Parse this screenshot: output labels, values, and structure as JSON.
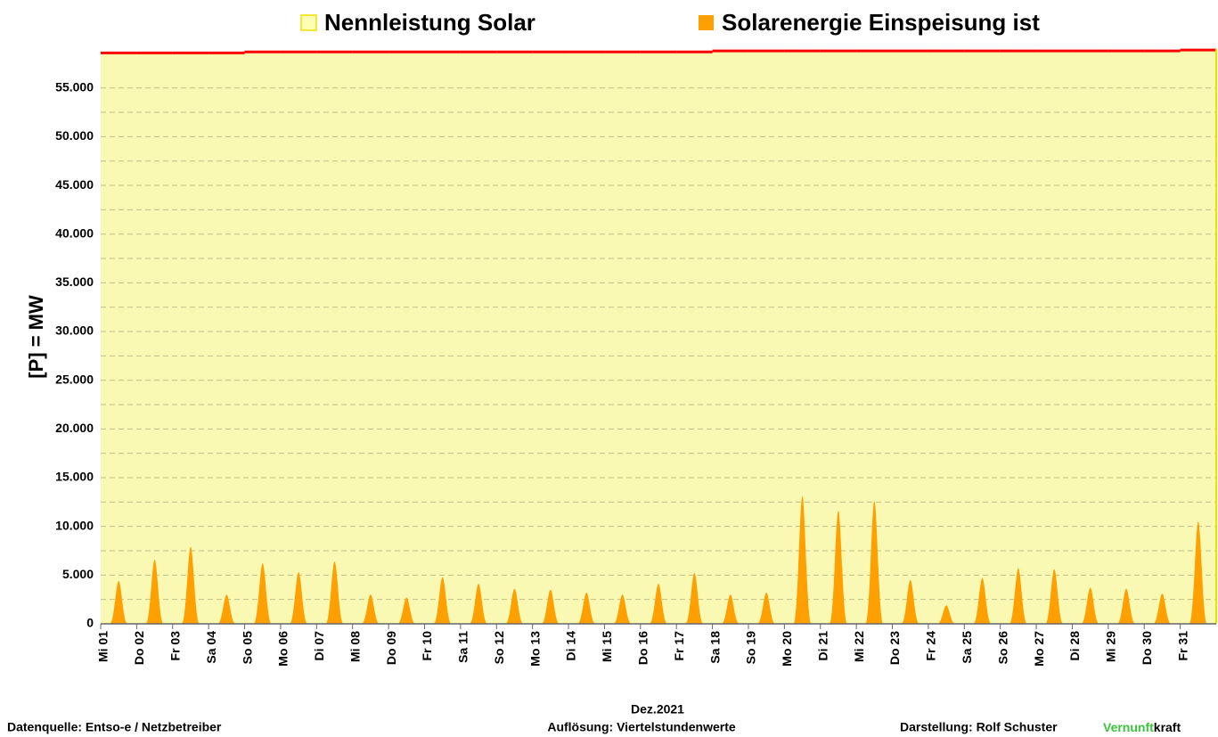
{
  "chart_data": {
    "type": "spike-area",
    "legend_title_1": "Nennleistung Solar",
    "legend_title_2": "Solarenergie Einspeisung ist",
    "y_label": "[P]  =  MW",
    "x_label": "Dez.2021",
    "source": "Datenquelle:  Entso-e  / Netzbetreiber",
    "resolution": "Auflösung: Viertelstundenwerte",
    "author": "Darstellung:  Rolf Schuster",
    "brand_1": "Vernunft",
    "brand_2": "kraft",
    "brand_1_color": "#3cc43c",
    "categories": [
      "Mi 01",
      "Do 02",
      "Fr 03",
      "Sa 04",
      "So 05",
      "Mo 06",
      "Di 07",
      "Mi 08",
      "Do 09",
      "Fr 10",
      "Sa 11",
      "So 12",
      "Mo 13",
      "Di 14",
      "Mi 15",
      "Do 16",
      "Fr 17",
      "Sa 18",
      "So 19",
      "Mo 20",
      "Di 21",
      "Mi 22",
      "Do 23",
      "Fr 24",
      "Sa 25",
      "So 26",
      "Mo 27",
      "Di 28",
      "Mi 29",
      "Do 30",
      "Fr 31"
    ],
    "series": [
      {
        "name": "Nennleistung Solar",
        "color": "#f9f9b4",
        "line_color": "#ff0000",
        "values": [
          58600,
          58600,
          58600,
          58600,
          58700,
          58700,
          58700,
          58700,
          58700,
          58700,
          58700,
          58700,
          58700,
          58700,
          58700,
          58700,
          58700,
          58800,
          58800,
          58800,
          58800,
          58800,
          58800,
          58800,
          58800,
          58800,
          58800,
          58800,
          58800,
          58800,
          58900
        ]
      },
      {
        "name": "Solarenergie Einspeisung ist",
        "color": "#ffa000",
        "values": [
          4400,
          6600,
          7900,
          3000,
          6200,
          5300,
          6400,
          3000,
          2700,
          4800,
          4100,
          3600,
          3500,
          3200,
          3000,
          4100,
          5200,
          3000,
          3200,
          13100,
          11600,
          12600,
          4500,
          1900,
          4700,
          5700,
          5600,
          3700,
          3600,
          3100,
          10500
        ]
      }
    ],
    "ylim": [
      0,
      59000
    ],
    "yticks": [
      {
        "value": 0,
        "label": "0"
      },
      {
        "value": 5000,
        "label": "5.000"
      },
      {
        "value": 10000,
        "label": "10.000"
      },
      {
        "value": 15000,
        "label": "15.000"
      },
      {
        "value": 20000,
        "label": "20.000"
      },
      {
        "value": 25000,
        "label": "25.000"
      },
      {
        "value": 30000,
        "label": "30.000"
      },
      {
        "value": 35000,
        "label": "35.000"
      },
      {
        "value": 40000,
        "label": "40.000"
      },
      {
        "value": 45000,
        "label": "45.000"
      },
      {
        "value": 50000,
        "label": "50.000"
      },
      {
        "value": 55000,
        "label": "55.000"
      }
    ],
    "grid": true
  }
}
